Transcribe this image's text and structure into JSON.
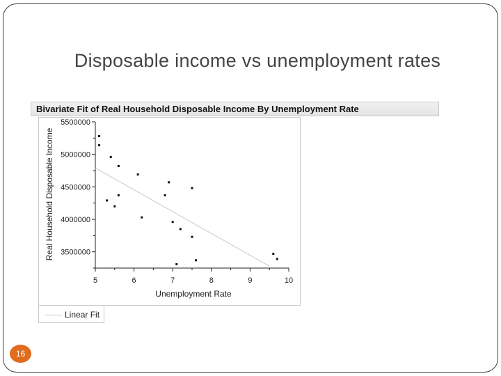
{
  "slide": {
    "title": "Disposable income vs unemployment rates",
    "page_number": "16"
  },
  "report": {
    "header": "Bivariate Fit of Real Household Disposable Income By Unemployment Rate"
  },
  "chart_data": {
    "type": "scatter",
    "title": "Bivariate Fit of Real Household Disposable Income By Unemployment Rate",
    "xlabel": "Unemployment Rate",
    "ylabel": "Real Household Disposable Income",
    "xlim": [
      5,
      10
    ],
    "ylim": [
      3250000,
      5500000
    ],
    "x_ticks": [
      5,
      6,
      7,
      8,
      9,
      10
    ],
    "x_tick_labels": [
      "5",
      "6",
      "7",
      "8",
      "9",
      "10"
    ],
    "y_ticks": [
      3500000,
      4000000,
      4500000,
      5000000,
      5500000
    ],
    "y_tick_labels": [
      "3500000",
      "4000000",
      "4500000",
      "5000000",
      "5500000"
    ],
    "grid": false,
    "legend_position": "bottom-left",
    "colors": {
      "points": "#111111",
      "fit_line": "#c8c8c8",
      "axis": "#222222"
    },
    "series": [
      {
        "type": "scatter",
        "points": [
          {
            "x": 5.1,
            "y": 5280000
          },
          {
            "x": 5.1,
            "y": 5140000
          },
          {
            "x": 5.4,
            "y": 4960000
          },
          {
            "x": 5.6,
            "y": 4820000
          },
          {
            "x": 6.1,
            "y": 4690000
          },
          {
            "x": 6.9,
            "y": 4570000
          },
          {
            "x": 7.5,
            "y": 4480000
          },
          {
            "x": 5.6,
            "y": 4370000
          },
          {
            "x": 6.8,
            "y": 4370000
          },
          {
            "x": 5.3,
            "y": 4290000
          },
          {
            "x": 5.5,
            "y": 4200000
          },
          {
            "x": 6.2,
            "y": 4030000
          },
          {
            "x": 7.0,
            "y": 3960000
          },
          {
            "x": 7.2,
            "y": 3850000
          },
          {
            "x": 7.5,
            "y": 3730000
          },
          {
            "x": 7.6,
            "y": 3370000
          },
          {
            "x": 7.1,
            "y": 3310000
          },
          {
            "x": 9.6,
            "y": 3470000
          },
          {
            "x": 9.7,
            "y": 3390000
          }
        ]
      },
      {
        "name": "Linear Fit",
        "type": "line",
        "points": [
          {
            "x": 5.0,
            "y": 4790000
          },
          {
            "x": 9.5,
            "y": 3280000
          }
        ]
      }
    ]
  }
}
